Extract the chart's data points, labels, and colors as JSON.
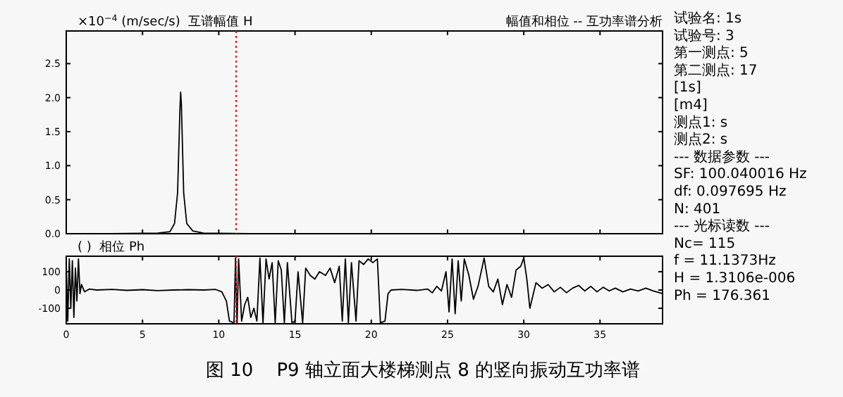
{
  "chart_data": [
    {
      "type": "line",
      "title": "幅值和相位 -- 互功率谱分析",
      "ylabel": "×10$^{−4}$ (m/sec/s)  互谱幅值 H",
      "xlim": [
        0,
        39.1
      ],
      "xticks": [
        0,
        5,
        10,
        15,
        20,
        25,
        30,
        35
      ],
      "ylim": [
        0,
        2.98
      ],
      "yticks": [
        {
          "value": 0,
          "label": "0.0"
        },
        {
          "value": 0.5,
          "label": "0.5"
        },
        {
          "value": 1,
          "label": "1.0"
        },
        {
          "value": 1.5,
          "label": "1.5"
        },
        {
          "value": 2,
          "label": "2.0"
        },
        {
          "value": 2.5,
          "label": "2.5"
        }
      ],
      "tick_labels": "y",
      "grid": false,
      "series": [
        {
          "color": "#000000",
          "x": [
            0,
            3,
            6,
            6.8,
            7.1,
            7.3,
            7.45,
            7.5,
            7.55,
            7.7,
            7.9,
            8.3,
            9,
            12,
            20,
            30,
            39.1
          ],
          "values": [
            0,
            0,
            0.01,
            0.03,
            0.15,
            0.6,
            1.8,
            2.08,
            1.9,
            0.6,
            0.15,
            0.04,
            0.01,
            0,
            0,
            0,
            0
          ]
        }
      ],
      "ref_lines": [
        {
          "axis": "x",
          "value": 11.1373,
          "color": "#ff0000",
          "line_style": "dotted"
        }
      ],
      "annotations": [
        "图 10    P9 轴立面大楼梯测点 8 的竖向振动互功率谱"
      ]
    },
    {
      "type": "line",
      "ylabel": "( )  相位 Ph",
      "xlim": [
        0,
        39.1
      ],
      "xticks": [
        0,
        5,
        10,
        15,
        20,
        25,
        30,
        35
      ],
      "ylim": [
        -185,
        185
      ],
      "yticks": [
        -100,
        0,
        100
      ],
      "grid": false,
      "series": [
        {
          "color": "#000000",
          "x": [
            0,
            0.1,
            0.2,
            0.3,
            0.4,
            0.5,
            0.6,
            0.7,
            0.8,
            0.9,
            1.0,
            1.2,
            1.5,
            2,
            3,
            4,
            5,
            6,
            7,
            8,
            9,
            9.8,
            10.2,
            10.5,
            10.7,
            11.0,
            11.1,
            11.2,
            11.3,
            11.5,
            11.7,
            11.9,
            12.1,
            12.3,
            12.5,
            12.7,
            12.9,
            13.1,
            13.3,
            13.5,
            13.7,
            13.9,
            14.1,
            14.3,
            14.5,
            14.8,
            15.0,
            15.2,
            15.5,
            15.7,
            16.0,
            16.3,
            16.6,
            17.0,
            17.3,
            17.6,
            17.9,
            18.1,
            18.3,
            18.5,
            18.7,
            19.0,
            19.2,
            19.5,
            19.8,
            20.1,
            20.4,
            20.6,
            20.9,
            21.1,
            21.3,
            22,
            23,
            23.7,
            24.0,
            24.3,
            24.6,
            24.9,
            25.1,
            25.3,
            25.5,
            25.7,
            25.9,
            26.1,
            26.4,
            26.7,
            27.0,
            27.4,
            27.7,
            28.0,
            28.3,
            28.6,
            28.9,
            29.2,
            29.5,
            29.8,
            30.0,
            30.2,
            30.4,
            30.6,
            30.8,
            31.2,
            31.6,
            32.0,
            32.4,
            32.8,
            33.2,
            33.6,
            34.0,
            34.4,
            34.8,
            35.2,
            35.6,
            36.0,
            36.5,
            37,
            37.5,
            38,
            38.5,
            39.1
          ],
          "values": [
            150,
            -170,
            170,
            -100,
            160,
            -150,
            120,
            -60,
            170,
            -20,
            30,
            -10,
            5,
            0,
            3,
            -2,
            2,
            -3,
            0,
            2,
            0,
            3,
            -10,
            -60,
            -170,
            -180,
            175,
            -180,
            170,
            -170,
            -80,
            -40,
            -150,
            -100,
            -170,
            175,
            -180,
            170,
            60,
            150,
            -180,
            160,
            110,
            -180,
            150,
            -180,
            -170,
            100,
            -180,
            120,
            80,
            60,
            100,
            80,
            120,
            40,
            130,
            -170,
            170,
            -180,
            150,
            -170,
            160,
            140,
            170,
            150,
            170,
            -180,
            -170,
            -20,
            0,
            3,
            -2,
            5,
            -15,
            20,
            -5,
            100,
            -120,
            170,
            -130,
            160,
            -60,
            170,
            80,
            -50,
            20,
            175,
            20,
            -10,
            60,
            -80,
            30,
            -40,
            110,
            130,
            175,
            60,
            -100,
            -30,
            40,
            10,
            30,
            -10,
            15,
            -15,
            10,
            25,
            -5,
            20,
            -10,
            15,
            -5,
            10,
            -10,
            5,
            -5,
            10,
            -5,
            -20
          ]
        }
      ],
      "ref_lines": [
        {
          "axis": "x",
          "value": 11.1373,
          "color": "#ff0000",
          "line_style": "dotted"
        }
      ]
    },
    {
      "type": "other",
      "annotations": [
        "试验名: 1s",
        "试验号: 3",
        "第一测点: 5",
        "第二测点: 17",
        "[1s]",
        "[m4]",
        "测点1: s",
        "测点2: s",
        "--- 数据参数 ---",
        "SF: 100.040016 Hz",
        "df: 0.097695 Hz",
        "N: 401",
        "--- 光标读数 ---",
        "Nc= 115",
        "f = 11.1373Hz",
        "H = 1.3106e-006",
        "Ph = 176.361"
      ]
    }
  ]
}
